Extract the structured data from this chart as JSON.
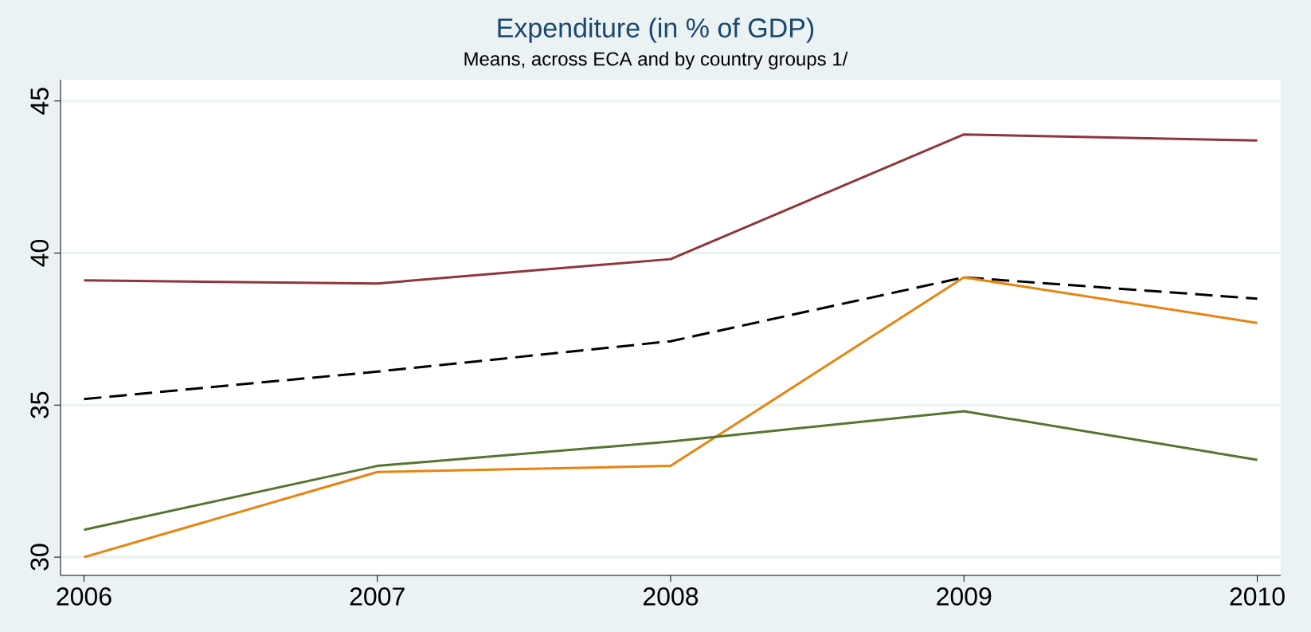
{
  "chart_data": {
    "type": "line",
    "title": "Expenditure (in % of GDP)",
    "subtitle": "Means, across ECA and by country groups 1/",
    "x": [
      2006,
      2007,
      2008,
      2009,
      2010
    ],
    "series": [
      {
        "color": "#90353b",
        "values": [
          39.1,
          39.0,
          39.8,
          43.9,
          43.7
        ],
        "line_style": "solid"
      },
      {
        "color": "#000000",
        "values": [
          35.2,
          36.1,
          37.1,
          39.2,
          38.5
        ],
        "line_style": "dashed"
      },
      {
        "color": "#e8830e",
        "values": [
          30.0,
          32.8,
          33.0,
          39.2,
          37.7
        ],
        "line_style": "solid"
      },
      {
        "color": "#55752f",
        "values": [
          30.9,
          33.0,
          33.8,
          34.8,
          33.2
        ],
        "line_style": "solid"
      }
    ],
    "xlim": [
      2005.92,
      2010.08
    ],
    "ylim": [
      29.4,
      45.7
    ],
    "xticks": [
      2006,
      2007,
      2008,
      2009,
      2010
    ],
    "yticks": [
      30,
      35,
      40,
      45
    ],
    "grid": "y",
    "marker": "none"
  }
}
